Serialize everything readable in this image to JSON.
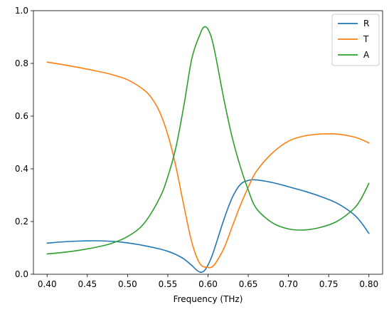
{
  "chart_data": {
    "type": "line",
    "xlabel": "Frequency (THz)",
    "ylabel": "",
    "xlim": [
      0.383,
      0.817
    ],
    "ylim": [
      0,
      1.0
    ],
    "xticks": [
      "0.40",
      "0.45",
      "0.50",
      "0.55",
      "0.60",
      "0.65",
      "0.70",
      "0.75",
      "0.80"
    ],
    "xtick_values": [
      0.4,
      0.45,
      0.5,
      0.55,
      0.6,
      0.65,
      0.7,
      0.75,
      0.8
    ],
    "yticks": [
      "0.0",
      "0.2",
      "0.4",
      "0.6",
      "0.8",
      "1.0"
    ],
    "ytick_values": [
      0.0,
      0.2,
      0.4,
      0.6,
      0.8,
      1.0
    ],
    "grid": false,
    "legend_position": "top-right",
    "series": [
      {
        "name": "R",
        "color": "#1f77b4",
        "x": [
          0.4,
          0.42,
          0.44,
          0.46,
          0.48,
          0.5,
          0.52,
          0.54,
          0.55,
          0.56,
          0.57,
          0.58,
          0.585,
          0.59,
          0.595,
          0.6,
          0.605,
          0.61,
          0.62,
          0.63,
          0.64,
          0.65,
          0.66,
          0.68,
          0.7,
          0.72,
          0.74,
          0.76,
          0.78,
          0.79,
          0.8
        ],
        "y": [
          0.118,
          0.123,
          0.126,
          0.127,
          0.125,
          0.119,
          0.109,
          0.096,
          0.087,
          0.075,
          0.058,
          0.033,
          0.018,
          0.008,
          0.012,
          0.035,
          0.07,
          0.115,
          0.21,
          0.29,
          0.34,
          0.356,
          0.358,
          0.348,
          0.332,
          0.315,
          0.295,
          0.27,
          0.23,
          0.198,
          0.155
        ]
      },
      {
        "name": "T",
        "color": "#ff7f0e",
        "x": [
          0.4,
          0.42,
          0.44,
          0.46,
          0.48,
          0.5,
          0.52,
          0.53,
          0.54,
          0.55,
          0.56,
          0.57,
          0.58,
          0.59,
          0.6,
          0.605,
          0.61,
          0.62,
          0.63,
          0.64,
          0.65,
          0.66,
          0.68,
          0.7,
          0.72,
          0.74,
          0.76,
          0.78,
          0.79,
          0.8
        ],
        "y": [
          0.805,
          0.795,
          0.784,
          0.772,
          0.758,
          0.738,
          0.7,
          0.668,
          0.615,
          0.53,
          0.41,
          0.26,
          0.12,
          0.04,
          0.026,
          0.028,
          0.045,
          0.1,
          0.18,
          0.26,
          0.33,
          0.39,
          0.46,
          0.505,
          0.525,
          0.532,
          0.532,
          0.522,
          0.512,
          0.498
        ]
      },
      {
        "name": "A",
        "color": "#2ca02c",
        "x": [
          0.4,
          0.42,
          0.44,
          0.46,
          0.48,
          0.5,
          0.52,
          0.54,
          0.55,
          0.56,
          0.57,
          0.58,
          0.59,
          0.595,
          0.6,
          0.605,
          0.61,
          0.62,
          0.63,
          0.64,
          0.65,
          0.66,
          0.68,
          0.7,
          0.72,
          0.74,
          0.76,
          0.78,
          0.79,
          0.8
        ],
        "y": [
          0.077,
          0.083,
          0.091,
          0.102,
          0.117,
          0.143,
          0.191,
          0.29,
          0.37,
          0.48,
          0.64,
          0.82,
          0.91,
          0.938,
          0.93,
          0.89,
          0.82,
          0.66,
          0.52,
          0.41,
          0.32,
          0.25,
          0.195,
          0.172,
          0.168,
          0.178,
          0.2,
          0.245,
          0.285,
          0.345
        ]
      }
    ]
  }
}
